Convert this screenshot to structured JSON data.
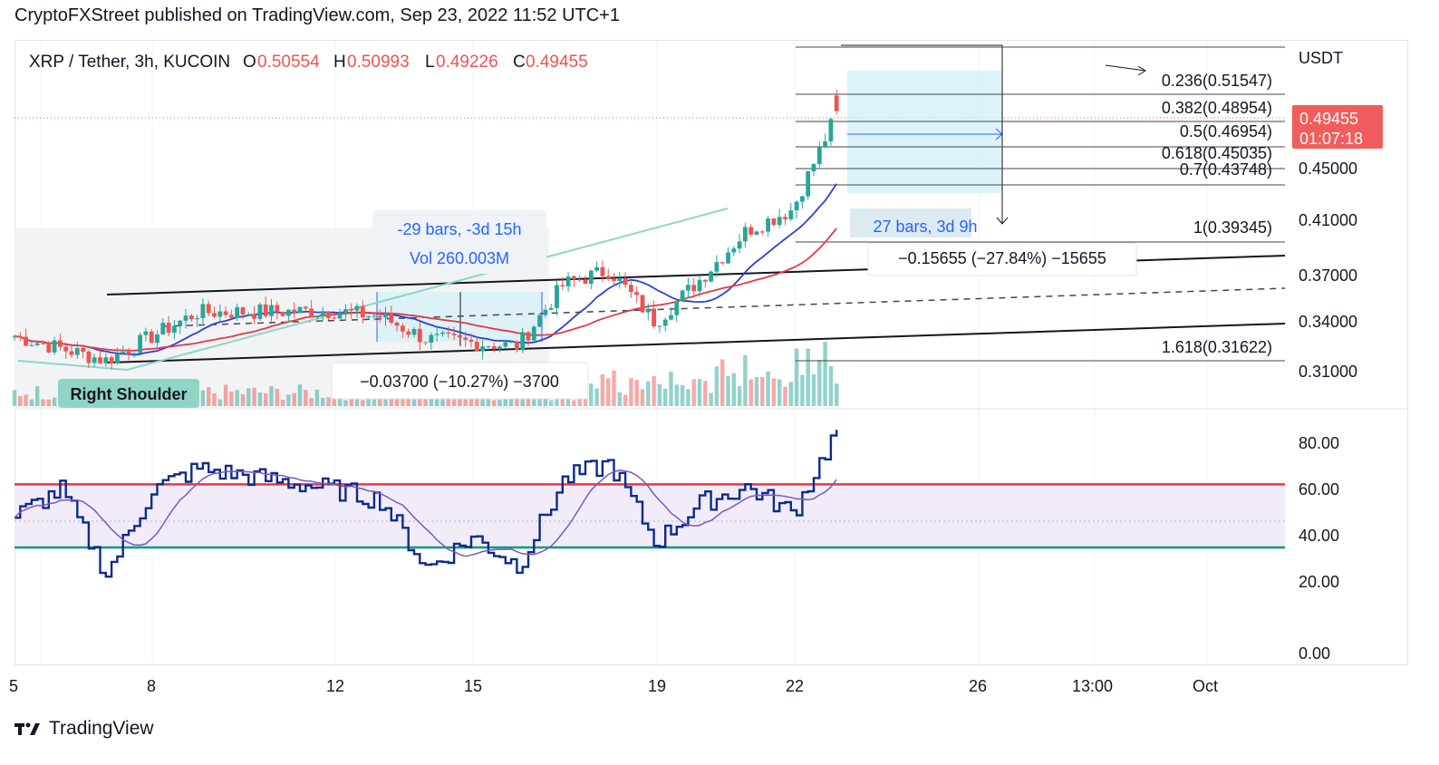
{
  "header": {
    "publisher_line": "CryptoFXStreet published on TradingView.com, Sep 23, 2022 11:52 UTC+1"
  },
  "legend": {
    "symbol": "XRP / Tether, 3h, KUCOIN",
    "o_label": "O",
    "o_value": "0.50554",
    "h_label": "H",
    "h_value": "0.50993",
    "l_label": "L",
    "l_value": "0.49226",
    "c_label": "C",
    "c_value": "0.49455"
  },
  "price_axis": {
    "currency": "USDT",
    "ticks": [
      "0.45000",
      "0.41000",
      "0.37000",
      "0.34000",
      "0.31000"
    ],
    "last_price": "0.49455",
    "countdown": "01:07:18"
  },
  "rsi_axis": {
    "ticks": [
      "80.00",
      "60.00",
      "40.00",
      "20.00",
      "0.00"
    ]
  },
  "time_axis": {
    "ticks": [
      "5",
      "8",
      "12",
      "15",
      "19",
      "22",
      "26",
      "13:00",
      "Oct"
    ]
  },
  "fib_levels": [
    {
      "label": "0.236(0.51547)"
    },
    {
      "label": "0.382(0.48954)"
    },
    {
      "label": "0.5(0.46954)"
    },
    {
      "label": "0.618(0.45035)"
    },
    {
      "label": "0.7(0.43748)"
    },
    {
      "label": "1(0.39345)"
    },
    {
      "label": "1.618(0.31622)"
    }
  ],
  "annotations": {
    "range_bars": "-29 bars, -3d 15h",
    "range_vol": "Vol 260.003M",
    "drop_small": "−0.03700 (−10.27%) −3700",
    "drop_big": "−0.15655 (−27.84%) −15655",
    "future_bars": "27 bars, 3d 9h",
    "pattern_label": "Right Shoulder"
  },
  "colors": {
    "up": "#26a69a",
    "down": "#ef5350",
    "ma_blue": "#2e3fd6",
    "ma_red": "#e53946",
    "rsi_line": "#0d2a8c",
    "rsi_signal": "#7e57c2",
    "rsi_upper": "#e53946",
    "rsi_lower": "#089981",
    "price_label_bg": "#f15d5d",
    "measure_fill": "#d6f1f8",
    "measure_text": "#2962ff"
  },
  "footer": {
    "brand": "TradingView"
  },
  "chart_data": [
    {
      "type": "candlestick",
      "symbol": "XRP / Tether",
      "timeframe": "3h",
      "exchange": "KUCOIN",
      "ylabel": "USDT",
      "last": {
        "open": 0.50554,
        "high": 0.50993,
        "low": 0.49226,
        "close": 0.49455
      },
      "anchors": [
        {
          "date": "Sep 5",
          "price": 0.335
        },
        {
          "date": "Sep 7",
          "price": 0.318
        },
        {
          "date": "Sep 9",
          "price": 0.352
        },
        {
          "date": "Sep 12",
          "price": 0.353
        },
        {
          "date": "Sep 13",
          "price": 0.349
        },
        {
          "date": "Sep 14",
          "price": 0.333
        },
        {
          "date": "Sep 16",
          "price": 0.328
        },
        {
          "date": "Sep 17",
          "price": 0.372
        },
        {
          "date": "Sep 18",
          "price": 0.382
        },
        {
          "date": "Sep 19",
          "price": 0.345
        },
        {
          "date": "Sep 20",
          "price": 0.376
        },
        {
          "date": "Sep 21",
          "price": 0.41
        },
        {
          "date": "Sep 22",
          "price": 0.425
        },
        {
          "date": "Sep 23",
          "price": 0.495
        }
      ],
      "fib_retracement": [
        {
          "ratio": 0,
          "price": 0.5565
        },
        {
          "ratio": 0.236,
          "price": 0.51547
        },
        {
          "ratio": 0.382,
          "price": 0.48954
        },
        {
          "ratio": 0.5,
          "price": 0.46954
        },
        {
          "ratio": 0.618,
          "price": 0.45035
        },
        {
          "ratio": 0.7,
          "price": 0.43748
        },
        {
          "ratio": 1,
          "price": 0.39345
        },
        {
          "ratio": 1.618,
          "price": 0.31622
        }
      ]
    },
    {
      "type": "line",
      "name": "RSI",
      "levels": {
        "upper": 64,
        "lower": 40
      },
      "ylim": [
        0,
        100
      ],
      "anchors": [
        {
          "date": "Sep 5",
          "value": 52
        },
        {
          "date": "Sep 6",
          "value": 62
        },
        {
          "date": "Sep 7",
          "value": 30
        },
        {
          "date": "Sep 8",
          "value": 62
        },
        {
          "date": "Sep 9",
          "value": 70
        },
        {
          "date": "Sep 12",
          "value": 62
        },
        {
          "date": "Sep 13",
          "value": 58
        },
        {
          "date": "Sep 14",
          "value": 32
        },
        {
          "date": "Sep 15",
          "value": 44
        },
        {
          "date": "Sep 16",
          "value": 33
        },
        {
          "date": "Sep 17",
          "value": 66
        },
        {
          "date": "Sep 18",
          "value": 72
        },
        {
          "date": "Sep 19",
          "value": 42
        },
        {
          "date": "Sep 20",
          "value": 57
        },
        {
          "date": "Sep 21",
          "value": 63
        },
        {
          "date": "Sep 22",
          "value": 53
        },
        {
          "date": "Sep 23",
          "value": 86
        }
      ]
    }
  ]
}
